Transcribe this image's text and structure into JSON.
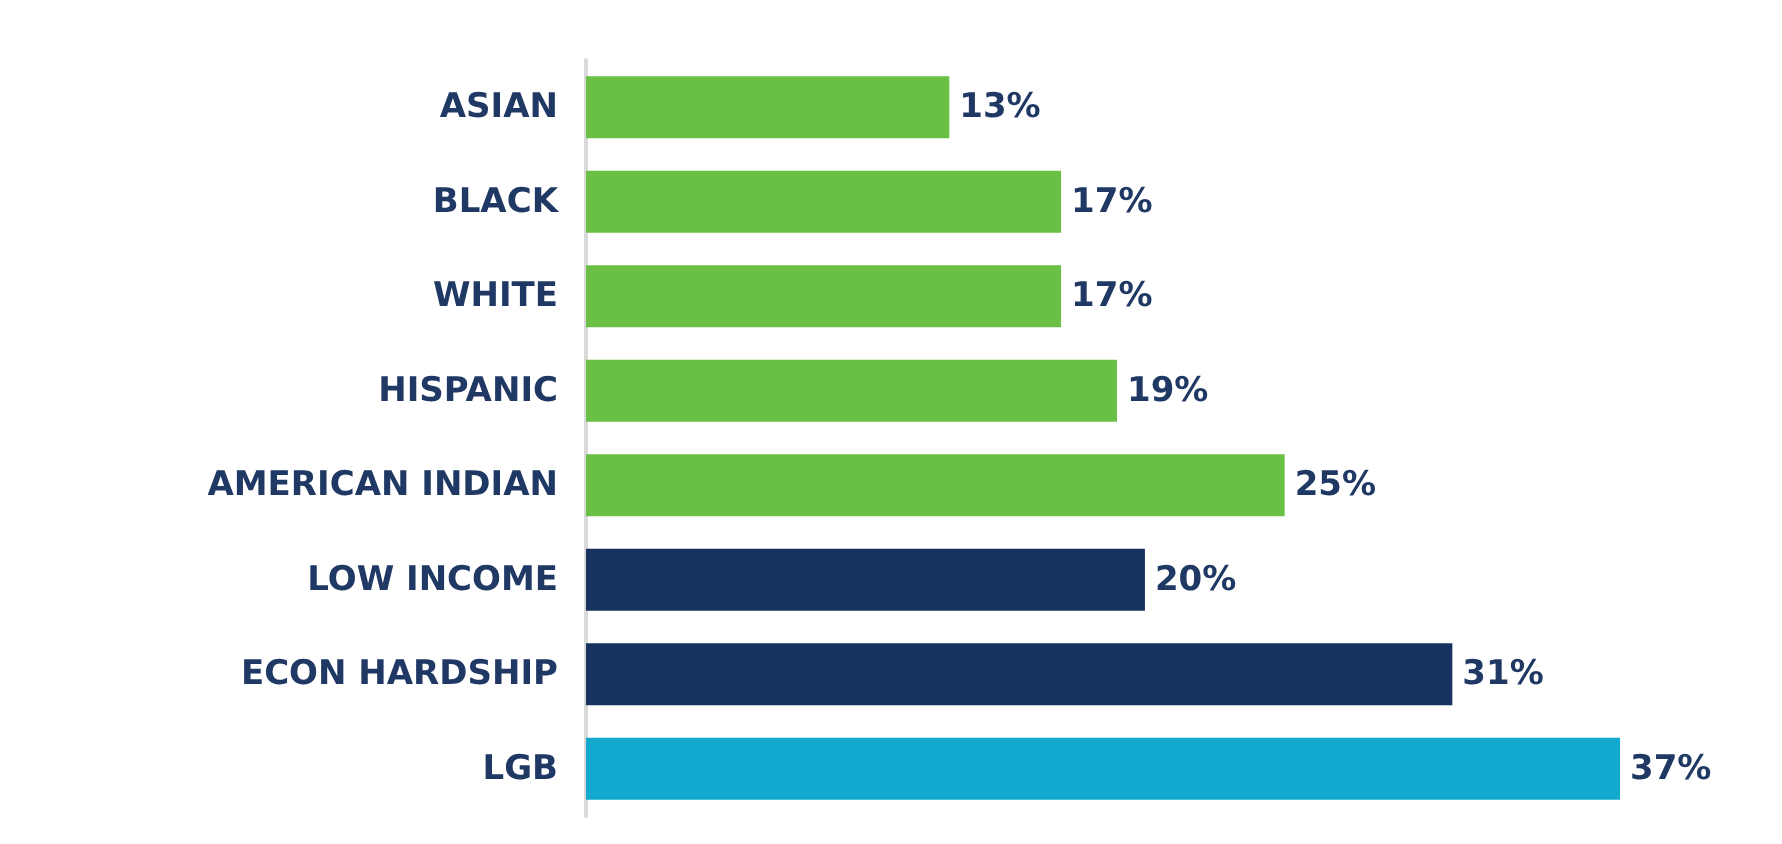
{
  "chart_data": {
    "type": "bar",
    "orientation": "horizontal",
    "categories": [
      "ASIAN",
      "BLACK",
      "WHITE",
      "HISPANIC",
      "AMERICAN INDIAN",
      "LOW INCOME",
      "ECON HARDSHIP",
      "LGB"
    ],
    "values": [
      13,
      17,
      17,
      19,
      25,
      20,
      31,
      37
    ],
    "colors": [
      "#6abf45",
      "#6abf45",
      "#6abf45",
      "#6abf45",
      "#6abf45",
      "#15335e",
      "#15335e",
      "#13a9cf"
    ],
    "value_labels": [
      "13%",
      "17%",
      "17%",
      "19%",
      "25%",
      "20%",
      "31%",
      "37%"
    ]
  }
}
